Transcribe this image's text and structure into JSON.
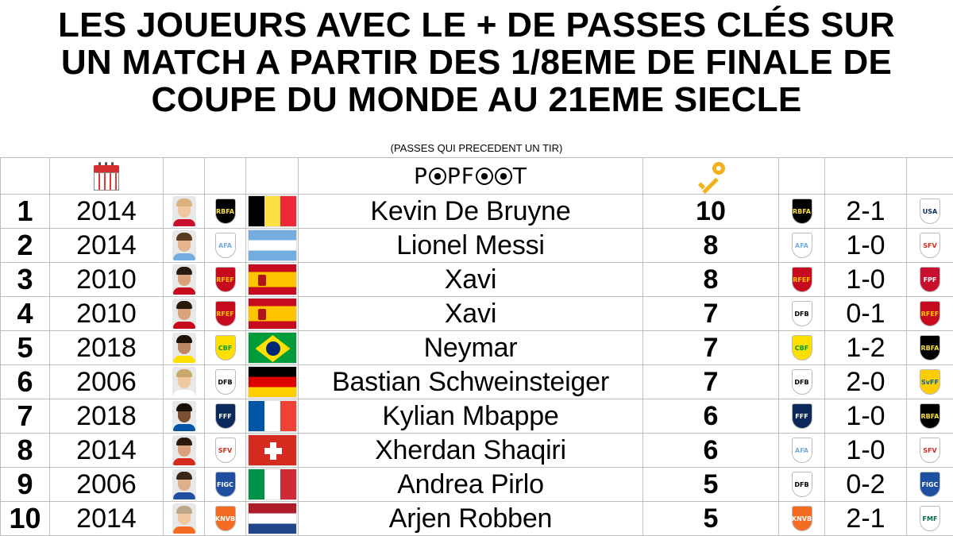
{
  "title": {
    "line1": "LES JOUEURS AVEC LE + DE PASSES CLÉS SUR",
    "line2": "UN MATCH A PARTIR DES 1/8EME DE FINALE DE",
    "line3": "COUPE DU MONDE AU 21EME SIECLE"
  },
  "subtitle": "(PASSES QUI PRECEDENT UN TIR)",
  "header": {
    "calendar_icon": "calendar-icon",
    "logo_text": "POPFOOT",
    "key_icon": "key-icon"
  },
  "rows": [
    {
      "rank": "1",
      "year": "2014",
      "player": "Kevin De Bruyne",
      "passes": "10",
      "score": "2-1",
      "team": "belgium",
      "opponent": "usa"
    },
    {
      "rank": "2",
      "year": "2014",
      "player": "Lionel Messi",
      "passes": "8",
      "score": "1-0",
      "team": "argentina",
      "opponent": "switzerland"
    },
    {
      "rank": "3",
      "year": "2010",
      "player": "Xavi",
      "passes": "8",
      "score": "1-0",
      "team": "spain",
      "opponent": "portugal"
    },
    {
      "rank": "4",
      "year": "2010",
      "player": "Xavi",
      "passes": "7",
      "score": "0-1",
      "team": "spain",
      "opponent": "spain",
      "played_for": "germany"
    },
    {
      "rank": "5",
      "year": "2018",
      "player": "Neymar",
      "passes": "7",
      "score": "1-2",
      "team": "brazil",
      "opponent": "belgium"
    },
    {
      "rank": "6",
      "year": "2006",
      "player": "Bastian Schweinsteiger",
      "passes": "7",
      "score": "2-0",
      "team": "germany",
      "opponent": "sweden"
    },
    {
      "rank": "7",
      "year": "2018",
      "player": "Kylian Mbappe",
      "passes": "6",
      "score": "1-0",
      "team": "france",
      "opponent": "belgium"
    },
    {
      "rank": "8",
      "year": "2014",
      "player": "Xherdan Shaqiri",
      "passes": "6",
      "score": "1-0",
      "team": "switzerland",
      "opponent": "switzerland",
      "played_for": "argentina"
    },
    {
      "rank": "9",
      "year": "2006",
      "player": "Andrea Pirlo",
      "passes": "5",
      "score": "0-2",
      "team": "italy",
      "opponent": "italy",
      "played_for": "germany"
    },
    {
      "rank": "10",
      "year": "2014",
      "player": "Arjen Robben",
      "passes": "5",
      "score": "2-1",
      "team": "netherlands",
      "opponent": "mexico"
    }
  ],
  "colors": {
    "grid": "#bdbdbd",
    "key": "#f2b21b",
    "calendar": "#d32f2f"
  }
}
